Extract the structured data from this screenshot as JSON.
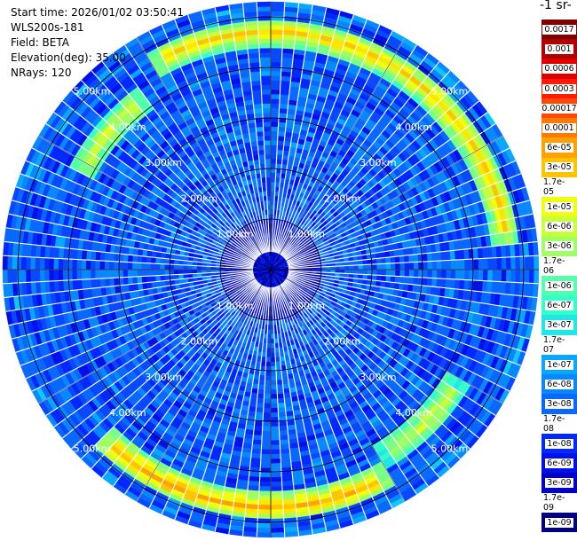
{
  "info": {
    "start_time": "Start time: 2026/01/02 03:50:41",
    "instrument": "WLS200s-181",
    "field": "Field: BETA",
    "elevation": "Elevation(deg): 35.00",
    "nrays": "NRays: 120"
  },
  "colorbar": {
    "unit_label": "-1 sr-",
    "labels": [
      "0.0017",
      "0.001",
      "0.0006",
      "0.0003",
      "0.00017",
      "0.0001",
      "6e-05",
      "3e-05",
      "1.7e-05",
      "1e-05",
      "6e-06",
      "3e-06",
      "1.7e-06",
      "1e-06",
      "6e-07",
      "3e-07",
      "1.7e-07",
      "1e-07",
      "6e-08",
      "3e-08",
      "1.7e-08",
      "1e-08",
      "6e-09",
      "3e-09",
      "1.7e-09",
      "1e-09"
    ],
    "colors": [
      "#7f0000",
      "#b00000",
      "#e00000",
      "#ff1a00",
      "#ff4a00",
      "#ff7a00",
      "#ffa200",
      "#ffc400",
      "#ffe600",
      "#f0ff10",
      "#c8ff3a",
      "#9dff63",
      "#78ff86",
      "#55ffaa",
      "#34ffca",
      "#1de8e6",
      "#10c8f6",
      "#08a8ff",
      "#0888ff",
      "#0868ff",
      "#0848ff",
      "#0028ff",
      "#0010e8",
      "#0000c8",
      "#0000a4",
      "#000080"
    ]
  },
  "chart_data": {
    "type": "heatmap",
    "projection": "polar-ppi",
    "field": "BETA",
    "elevation_deg": 35.0,
    "n_rays": 120,
    "range_rings_km": [
      1.0,
      2.0,
      3.0,
      4.0,
      5.0
    ],
    "range_labels": [
      "1.00km",
      "2.00km",
      "3.00km",
      "4.00km",
      "5.00km"
    ],
    "max_range_km": 5.3,
    "background_beta": "3e-08",
    "features": [
      {
        "name": "north arc",
        "az_from": 335,
        "az_to": 80,
        "range_km": 4.7,
        "beta_peak": "3e-05"
      },
      {
        "name": "northwest arc",
        "az_from": 300,
        "az_to": 320,
        "range_km": 4.2,
        "beta_peak": "1e-05"
      },
      {
        "name": "southeast arc",
        "az_from": 125,
        "az_to": 145,
        "range_km": 4.3,
        "beta_peak": "1e-05"
      },
      {
        "name": "south arc",
        "az_from": 155,
        "az_to": 220,
        "range_km": 4.7,
        "beta_peak": "6e-05"
      }
    ]
  }
}
